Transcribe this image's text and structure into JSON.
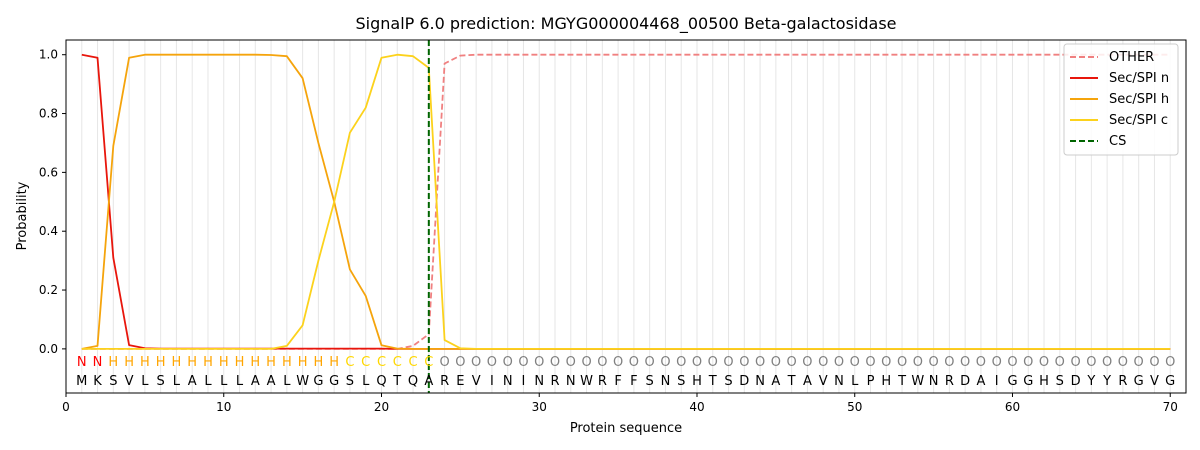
{
  "chart_data": {
    "type": "line",
    "title": "SignalP 6.0 prediction: MGYG000004468_00500 Beta-galactosidase",
    "xlabel": "Protein sequence",
    "ylabel": "Probability",
    "xlim": [
      0,
      71
    ],
    "ylim": [
      -0.15,
      1.05
    ],
    "x_ticks": [
      0,
      10,
      20,
      30,
      40,
      50,
      60,
      70
    ],
    "y_ticks": [
      0.0,
      0.2,
      0.4,
      0.6,
      0.8,
      1.0
    ],
    "x_tick_labels": [
      "0",
      "10",
      "20",
      "30",
      "40",
      "50",
      "60",
      "70"
    ],
    "y_tick_labels": [
      "0.0",
      "0.2",
      "0.4",
      "0.6",
      "0.8",
      "1.0"
    ],
    "grid": "vertical lines at each residue",
    "legend_position": "upper-right",
    "sequence": [
      "M",
      "K",
      "S",
      "V",
      "L",
      "S",
      "L",
      "A",
      "L",
      "L",
      "L",
      "A",
      "A",
      "L",
      "W",
      "G",
      "G",
      "S",
      "L",
      "Q",
      "T",
      "Q",
      "A",
      "R",
      "E",
      "V",
      "I",
      "N",
      "I",
      "N",
      "R",
      "N",
      "W",
      "R",
      "F",
      "F",
      "S",
      "N",
      "S",
      "H",
      "T",
      "S",
      "D",
      "N",
      "A",
      "T",
      "A",
      "V",
      "N",
      "L",
      "P",
      "H",
      "T",
      "W",
      "N",
      "R",
      "D",
      "A",
      "I",
      "G",
      "G",
      "H",
      "S",
      "D",
      "Y",
      "Y",
      "R",
      "G",
      "V",
      "G"
    ],
    "region_labels": [
      "N",
      "N",
      "H",
      "H",
      "H",
      "H",
      "H",
      "H",
      "H",
      "H",
      "H",
      "H",
      "H",
      "H",
      "H",
      "H",
      "H",
      "C",
      "C",
      "C",
      "C",
      "C",
      "C",
      "O",
      "O",
      "O",
      "O",
      "O",
      "O",
      "O",
      "O",
      "O",
      "O",
      "O",
      "O",
      "O",
      "O",
      "O",
      "O",
      "O",
      "O",
      "O",
      "O",
      "O",
      "O",
      "O",
      "O",
      "O",
      "O",
      "O",
      "O",
      "O",
      "O",
      "O",
      "O",
      "O",
      "O",
      "O",
      "O",
      "O",
      "O",
      "O",
      "O",
      "O",
      "O",
      "O",
      "O",
      "O",
      "O",
      "O"
    ],
    "region_colors": {
      "N": "#ff0000",
      "H": "#ffa500",
      "C": "#ffd700",
      "O": "#808080"
    },
    "cleavage_site": 23,
    "series": [
      {
        "name": "OTHER",
        "color": "#f08080",
        "style": "dashed",
        "x": [
          1,
          2,
          3,
          4,
          5,
          6,
          7,
          8,
          9,
          10,
          11,
          12,
          13,
          14,
          15,
          16,
          17,
          18,
          19,
          20,
          21,
          22,
          23,
          24,
          25,
          26,
          27,
          28,
          29,
          30,
          31,
          32,
          33,
          34,
          35,
          36,
          37,
          38,
          39,
          40,
          41,
          42,
          43,
          44,
          45,
          46,
          47,
          48,
          49,
          50,
          51,
          52,
          53,
          54,
          55,
          56,
          57,
          58,
          59,
          60,
          61,
          62,
          63,
          64,
          65,
          66,
          67,
          68,
          69,
          70
        ],
        "values": [
          0,
          0,
          0,
          0,
          0,
          0,
          0,
          0,
          0,
          0,
          0,
          0,
          0,
          0,
          0,
          0,
          0,
          0,
          0,
          0,
          0,
          0.01,
          0.05,
          0.97,
          0.997,
          1,
          1,
          1,
          1,
          1,
          1,
          1,
          1,
          1,
          1,
          1,
          1,
          1,
          1,
          1,
          1,
          1,
          1,
          1,
          1,
          1,
          1,
          1,
          1,
          1,
          1,
          1,
          1,
          1,
          1,
          1,
          1,
          1,
          1,
          1,
          1,
          1,
          1,
          1,
          1,
          1,
          1,
          1,
          1,
          1
        ]
      },
      {
        "name": "Sec/SPI n",
        "color": "#e8160c",
        "style": "solid",
        "x": [
          1,
          2,
          3,
          4,
          5,
          6,
          7,
          8,
          9,
          10,
          11,
          12,
          13,
          14,
          15,
          16,
          17,
          18,
          19,
          20,
          21,
          22,
          23,
          24,
          25,
          26,
          27,
          28,
          29,
          30,
          31,
          32,
          33,
          34,
          35,
          36,
          37,
          38,
          39,
          40,
          41,
          42,
          43,
          44,
          45,
          46,
          47,
          48,
          49,
          50,
          51,
          52,
          53,
          54,
          55,
          56,
          57,
          58,
          59,
          60,
          61,
          62,
          63,
          64,
          65,
          66,
          67,
          68,
          69,
          70
        ],
        "values": [
          1.0,
          0.99,
          0.31,
          0.013,
          0.002,
          0.001,
          0.001,
          0.001,
          0.001,
          0.001,
          0.001,
          0.001,
          0.001,
          0.001,
          0.001,
          0.001,
          0.001,
          0.001,
          0.001,
          0.001,
          0,
          0,
          0,
          0,
          0,
          0,
          0,
          0,
          0,
          0,
          0,
          0,
          0,
          0,
          0,
          0,
          0,
          0,
          0,
          0,
          0,
          0,
          0,
          0,
          0,
          0,
          0,
          0,
          0,
          0,
          0,
          0,
          0,
          0,
          0,
          0,
          0,
          0,
          0,
          0,
          0,
          0,
          0,
          0,
          0,
          0,
          0,
          0,
          0,
          0
        ]
      },
      {
        "name": "Sec/SPI h",
        "color": "#f5a40c",
        "style": "solid",
        "x": [
          1,
          2,
          3,
          4,
          5,
          6,
          7,
          8,
          9,
          10,
          11,
          12,
          13,
          14,
          15,
          16,
          17,
          18,
          19,
          20,
          21,
          22,
          23,
          24,
          25,
          26,
          27,
          28,
          29,
          30,
          31,
          32,
          33,
          34,
          35,
          36,
          37,
          38,
          39,
          40,
          41,
          42,
          43,
          44,
          45,
          46,
          47,
          48,
          49,
          50,
          51,
          52,
          53,
          54,
          55,
          56,
          57,
          58,
          59,
          60,
          61,
          62,
          63,
          64,
          65,
          66,
          67,
          68,
          69,
          70
        ],
        "values": [
          0.0,
          0.01,
          0.69,
          0.99,
          1.0,
          1.0,
          1.0,
          1.0,
          1.0,
          1.0,
          1.0,
          1.0,
          0.999,
          0.995,
          0.92,
          0.7,
          0.5,
          0.27,
          0.18,
          0.012,
          0.001,
          0,
          0,
          0,
          0,
          0,
          0,
          0,
          0,
          0,
          0,
          0,
          0,
          0,
          0,
          0,
          0,
          0,
          0,
          0,
          0,
          0,
          0,
          0,
          0,
          0,
          0,
          0,
          0,
          0,
          0,
          0,
          0,
          0,
          0,
          0,
          0,
          0,
          0,
          0,
          0,
          0,
          0,
          0,
          0,
          0,
          0,
          0,
          0,
          0
        ]
      },
      {
        "name": "Sec/SPI c",
        "color": "#fcd21c",
        "style": "solid",
        "x": [
          1,
          2,
          3,
          4,
          5,
          6,
          7,
          8,
          9,
          10,
          11,
          12,
          13,
          14,
          15,
          16,
          17,
          18,
          19,
          20,
          21,
          22,
          23,
          24,
          25,
          26,
          27,
          28,
          29,
          30,
          31,
          32,
          33,
          34,
          35,
          36,
          37,
          38,
          39,
          40,
          41,
          42,
          43,
          44,
          45,
          46,
          47,
          48,
          49,
          50,
          51,
          52,
          53,
          54,
          55,
          56,
          57,
          58,
          59,
          60,
          61,
          62,
          63,
          64,
          65,
          66,
          67,
          68,
          69,
          70
        ],
        "values": [
          0,
          0,
          0,
          0,
          0,
          0,
          0,
          0,
          0,
          0,
          0,
          0,
          0,
          0.01,
          0.08,
          0.3,
          0.5,
          0.735,
          0.82,
          0.99,
          1.0,
          0.995,
          0.955,
          0.03,
          0.002,
          0,
          0,
          0,
          0,
          0,
          0,
          0,
          0,
          0,
          0,
          0,
          0,
          0,
          0,
          0,
          0,
          0,
          0,
          0,
          0,
          0,
          0,
          0,
          0,
          0,
          0,
          0,
          0,
          0,
          0,
          0,
          0,
          0,
          0,
          0,
          0,
          0,
          0,
          0,
          0,
          0,
          0,
          0,
          0,
          0
        ]
      },
      {
        "name": "CS",
        "color": "#006400",
        "style": "dashed",
        "vertical_at": 23
      }
    ]
  }
}
